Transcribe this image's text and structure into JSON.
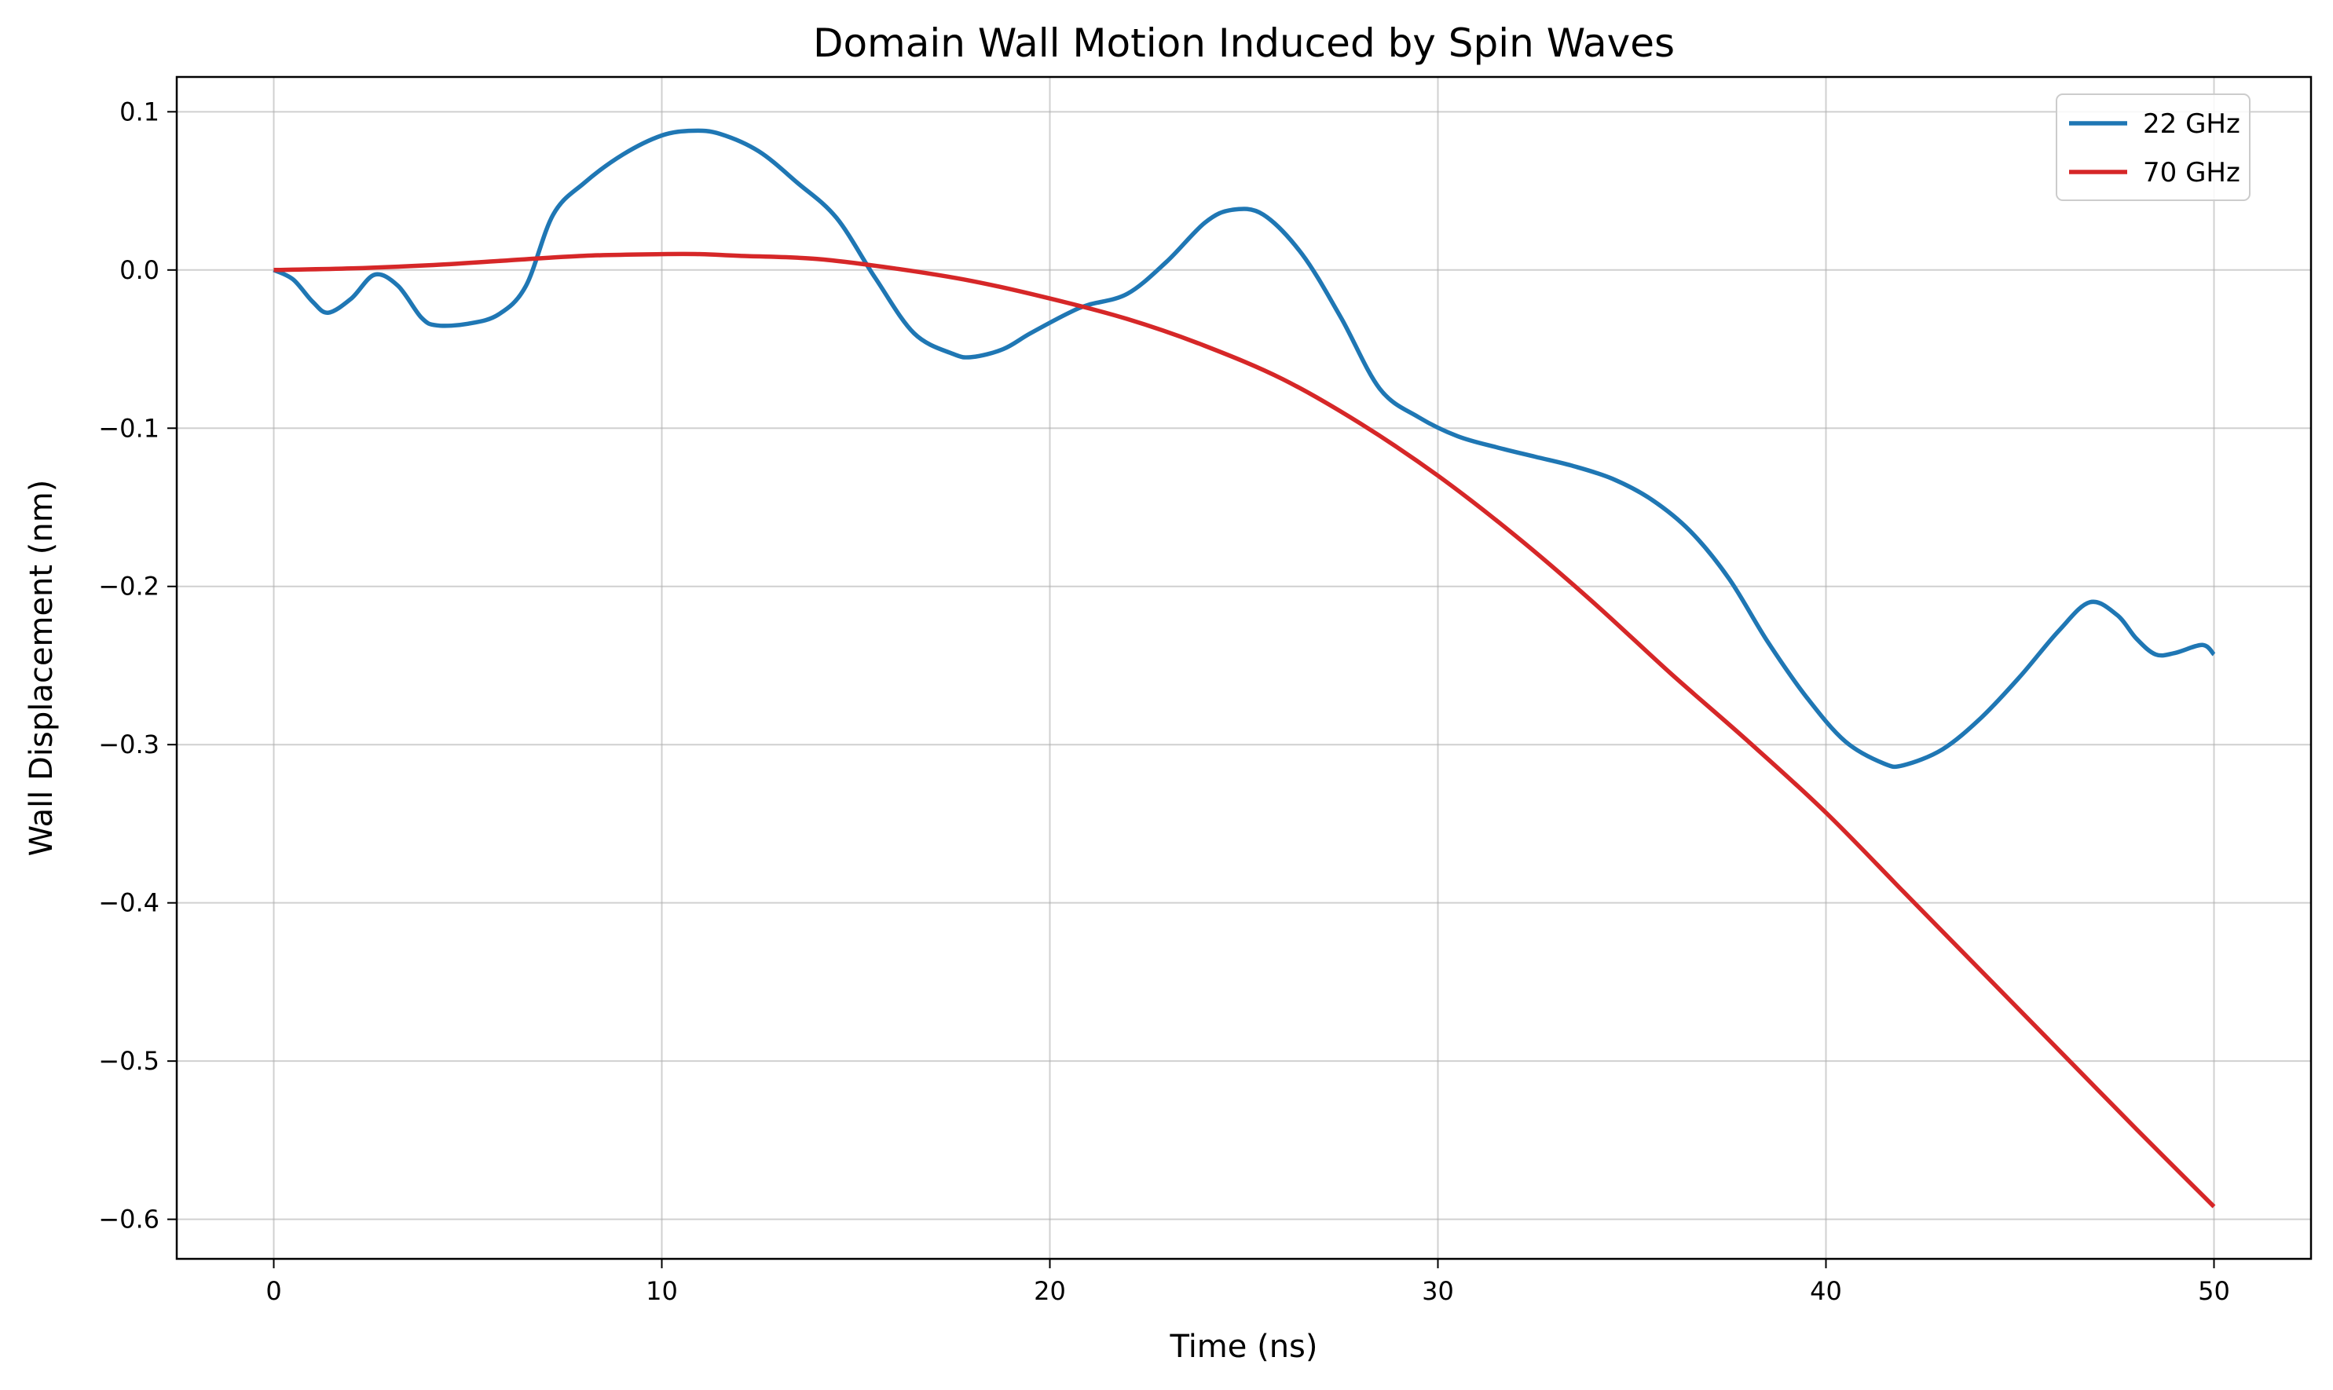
{
  "chart_data": {
    "type": "line",
    "title": "Domain Wall Motion Induced by Spin Waves",
    "xlabel": "Time (ns)",
    "ylabel": "Wall Displacement (nm)",
    "xlim": [
      -2.5,
      52.5
    ],
    "ylim": [
      -0.625,
      0.122
    ],
    "xticks": [
      0,
      10,
      20,
      30,
      40,
      50
    ],
    "yticks": [
      0.1,
      0.0,
      -0.1,
      -0.2,
      -0.3,
      -0.4,
      -0.5,
      -0.6
    ],
    "xtick_labels": [
      "0",
      "10",
      "20",
      "30",
      "40",
      "50"
    ],
    "ytick_labels": [
      "0.1",
      "0.0",
      "−0.1",
      "−0.2",
      "−0.3",
      "−0.4",
      "−0.5",
      "−0.6"
    ],
    "grid": true,
    "legend_position": "top-right",
    "series": [
      {
        "name": "22 GHz",
        "color": "#1f77b4",
        "x": [
          0,
          0.5,
          1,
          1.4,
          2,
          2.6,
          3.2,
          3.8,
          4.2,
          5,
          5.8,
          6.5,
          7.2,
          8,
          9,
          10,
          10.8,
          11.5,
          12.5,
          13.5,
          14.5,
          15.5,
          16.5,
          17.5,
          18,
          18.8,
          19.5,
          20.5,
          21,
          22,
          23,
          24,
          24.7,
          25.5,
          26.5,
          27.5,
          28.5,
          29.5,
          30.5,
          31.5,
          32.5,
          33.5,
          34.5,
          35.5,
          36.5,
          37.5,
          38.5,
          39.5,
          40.5,
          41.5,
          42,
          43,
          44,
          45,
          46,
          46.8,
          47.5,
          48,
          48.5,
          49,
          49.7,
          50
        ],
        "y": [
          0.0,
          -0.006,
          -0.02,
          -0.027,
          -0.018,
          -0.003,
          -0.01,
          -0.03,
          -0.035,
          -0.034,
          -0.028,
          -0.01,
          0.035,
          0.055,
          0.073,
          0.085,
          0.088,
          0.086,
          0.075,
          0.055,
          0.033,
          -0.005,
          -0.04,
          -0.053,
          -0.055,
          -0.05,
          -0.04,
          -0.027,
          -0.022,
          -0.015,
          0.005,
          0.03,
          0.038,
          0.035,
          0.01,
          -0.03,
          -0.075,
          -0.093,
          -0.105,
          -0.112,
          -0.118,
          -0.124,
          -0.132,
          -0.145,
          -0.165,
          -0.195,
          -0.235,
          -0.27,
          -0.298,
          -0.312,
          -0.313,
          -0.303,
          -0.283,
          -0.257,
          -0.228,
          -0.21,
          -0.218,
          -0.233,
          -0.243,
          -0.242,
          -0.237,
          -0.243
        ]
      },
      {
        "name": "70 GHz",
        "color": "#d62728",
        "x": [
          0,
          2,
          4,
          6,
          8,
          10,
          11,
          12,
          14,
          16,
          18,
          20,
          22,
          24,
          26,
          28,
          30,
          32,
          34,
          36,
          38,
          40,
          42,
          44,
          46,
          48,
          50
        ],
        "y": [
          0.0,
          0.001,
          0.003,
          0.006,
          0.009,
          0.01,
          0.01,
          0.009,
          0.007,
          0.001,
          -0.007,
          -0.018,
          -0.031,
          -0.048,
          -0.069,
          -0.097,
          -0.13,
          -0.168,
          -0.21,
          -0.255,
          -0.298,
          -0.343,
          -0.393,
          -0.443,
          -0.493,
          -0.543,
          -0.592
        ]
      }
    ]
  }
}
